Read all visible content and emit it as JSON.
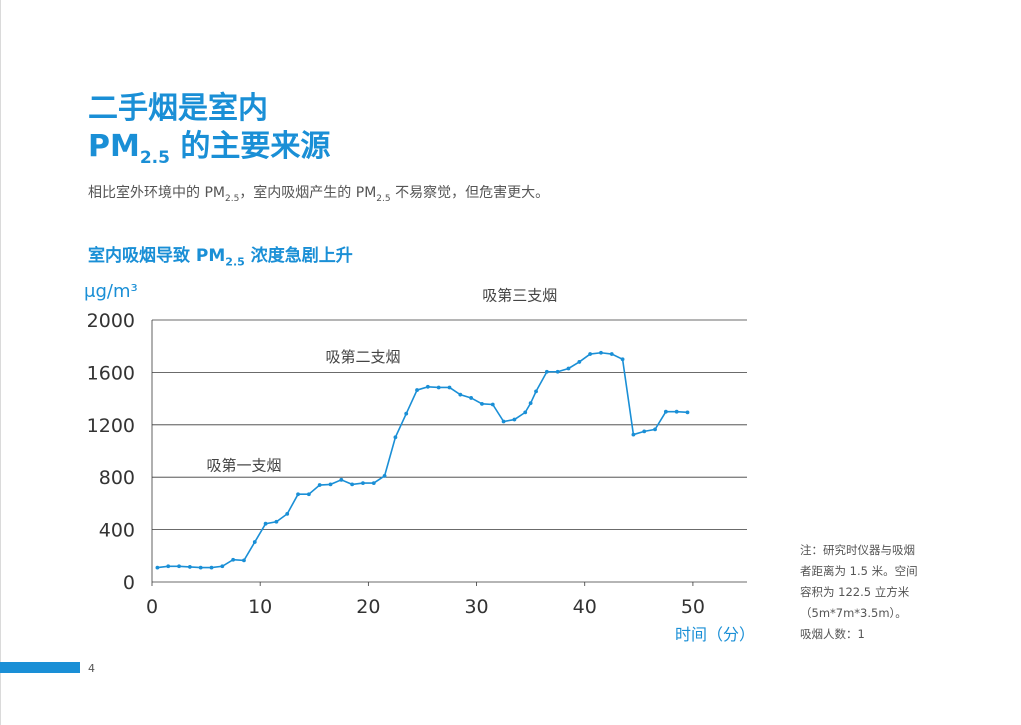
{
  "page": {
    "title_line1": "二手烟是室内",
    "title_line2_main": "PM",
    "title_line2_sub": "2.5",
    "title_line2_rest": " 的主要来源",
    "subtitle_part1": "相比室外环境中的 PM",
    "subtitle_sub1": "2.5",
    "subtitle_part2": "，室内吸烟产生的 PM",
    "subtitle_sub2": "2.5",
    "subtitle_part3": " 不易察觉，但危害更大。",
    "page_number": "4",
    "accent_color": "#1a8fd6"
  },
  "chart_title": {
    "part1": "室内吸烟导致 PM",
    "sub": "2.5",
    "part2": " 浓度急剧上升"
  },
  "note": {
    "line1": "注：研究时仪器与吸烟",
    "line2": "者距离为 1.5 米。空间",
    "line3": "容积为 122.5 立方米",
    "line4": "（5m*7m*3.5m）。",
    "line5": "吸烟人数：1"
  },
  "chart_data": {
    "type": "line",
    "ylabel": "μg/m³",
    "xlabel": "时间（分）",
    "xlim": [
      0,
      55
    ],
    "ylim": [
      0,
      2000
    ],
    "x_ticks": [
      0,
      10,
      20,
      30,
      40,
      50
    ],
    "y_ticks": [
      0,
      400,
      800,
      1200,
      1600,
      2000
    ],
    "grid": true,
    "line_color": "#1a8fd6",
    "annotations": [
      {
        "text": "吸第一支烟",
        "x": 8.5,
        "y": 850
      },
      {
        "text": "吸第二支烟",
        "x": 19.5,
        "y": 1680
      },
      {
        "text": "吸第三支烟",
        "x": 34,
        "y": 2150
      }
    ],
    "series": [
      {
        "x": [
          0.5,
          1.5,
          2.5,
          3.5,
          4.5,
          5.5,
          6.5,
          7.5,
          8.5,
          9.5,
          10.5,
          11.5,
          12.5,
          13.5,
          14.5,
          15.5,
          16.5,
          17.5,
          18.5,
          19.5,
          20.5,
          21.5,
          22.5,
          23.5,
          24.5,
          25.5,
          26.5,
          27.5,
          28.5,
          29.5,
          30.5,
          31.5,
          32.5,
          33.5,
          34.5,
          35,
          35.5,
          36.5,
          37.5,
          38.5,
          39.5,
          40.5,
          41.5,
          42.5,
          43.5,
          44.5,
          45.5,
          46.5,
          47.5,
          48.5,
          49.5
        ],
        "values": [
          110,
          120,
          120,
          115,
          110,
          110,
          120,
          170,
          165,
          305,
          445,
          460,
          520,
          670,
          670,
          740,
          745,
          780,
          745,
          755,
          755,
          810,
          1105,
          1285,
          1465,
          1490,
          1485,
          1485,
          1430,
          1405,
          1360,
          1355,
          1225,
          1240,
          1295,
          1365,
          1455,
          1605,
          1605,
          1630,
          1680,
          1740,
          1750,
          1740,
          1700,
          1125,
          1150,
          1165,
          1300,
          1300,
          1295
        ]
      }
    ]
  }
}
